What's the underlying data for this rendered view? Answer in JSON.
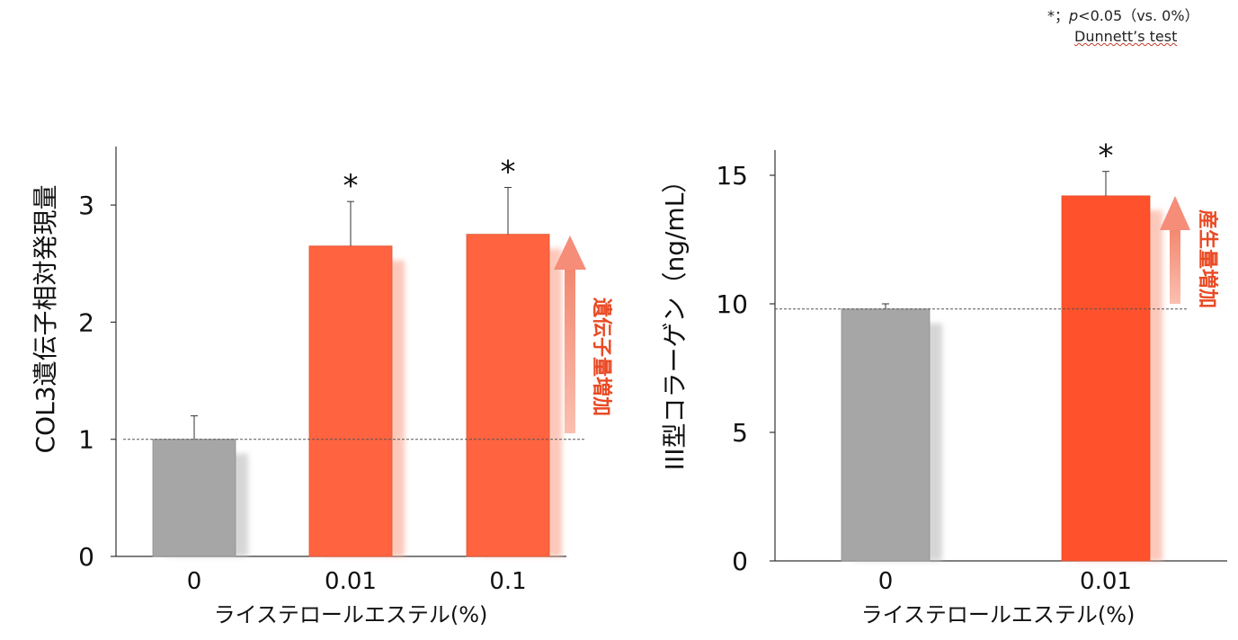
{
  "note": {
    "sig_prefix": "*；",
    "p_symbol": "p",
    "sig_suffix": "<0.05（vs. 0%）",
    "test": "Dunnett’s test"
  },
  "colors": {
    "control": "#a6a6a6",
    "treated_left": "#ff6340",
    "treated_right": "#ff512c",
    "annotation": "#ea4a24",
    "arrow": "#f58d79",
    "axis": "#333333",
    "baseline": "#555555"
  },
  "chart_data": [
    {
      "type": "bar",
      "categories": [
        "0",
        "0.01",
        "0.1"
      ],
      "values": [
        1.0,
        2.65,
        2.75
      ],
      "errors": [
        0.2,
        0.38,
        0.4
      ],
      "significant": [
        false,
        true,
        true
      ],
      "sig_marker": "*",
      "ylabel": "COL3遺伝子相対発現量",
      "xlabel": "ライステロールエステル(%)",
      "ylim": [
        0,
        3.5
      ],
      "yticks": [
        0,
        1,
        2,
        3
      ],
      "baseline": 1.0,
      "annotation": "遺伝子量増加"
    },
    {
      "type": "bar",
      "categories": [
        "0",
        "0.01"
      ],
      "values": [
        9.8,
        14.2
      ],
      "errors": [
        0.2,
        0.95
      ],
      "significant": [
        false,
        true
      ],
      "sig_marker": "*",
      "ylabel": "III型コラーゲン（ng/mL）",
      "xlabel": "ライステロールエステル(%)",
      "ylim": [
        0,
        16
      ],
      "yticks": [
        0,
        5,
        10,
        15
      ],
      "baseline": 9.8,
      "annotation": "産生量増加"
    }
  ]
}
